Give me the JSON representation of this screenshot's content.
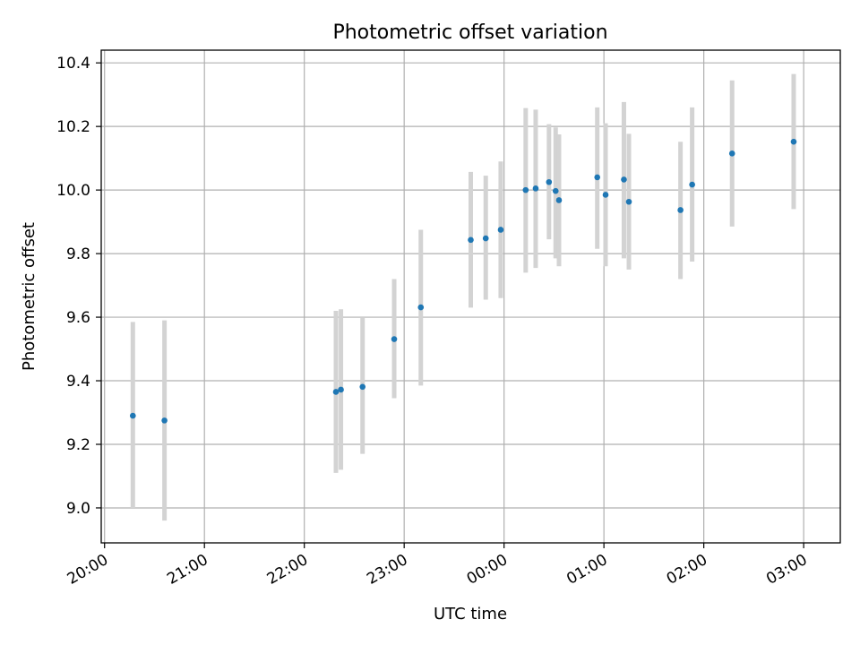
{
  "chart_data": {
    "type": "scatter",
    "title": "Photometric offset variation",
    "xlabel": "UTC time",
    "ylabel": "Photometric offset",
    "x_unit": "UTC time (HH:MM)",
    "x_range": [
      "19:58",
      "03:22"
    ],
    "ylim": [
      8.89,
      10.44
    ],
    "x_ticks": [
      "20:00",
      "21:00",
      "22:00",
      "23:00",
      "00:00",
      "01:00",
      "02:00",
      "03:00"
    ],
    "y_ticks": [
      "9.0",
      "9.2",
      "9.4",
      "9.6",
      "9.8",
      "10.0",
      "10.2",
      "10.4"
    ],
    "grid": true,
    "x_tick_rotation_deg": 30,
    "marker_color": "#1f77b4",
    "errorbar_color": "#d3d3d3",
    "series": [
      {
        "points": [
          {
            "x": "20:17",
            "y": 9.29,
            "err_low": 9.0,
            "err_high": 9.585
          },
          {
            "x": "20:36",
            "y": 9.275,
            "err_low": 8.96,
            "err_high": 9.59
          },
          {
            "x": "22:19",
            "y": 9.365,
            "err_low": 9.11,
            "err_high": 9.62
          },
          {
            "x": "22:22",
            "y": 9.372,
            "err_low": 9.12,
            "err_high": 9.625
          },
          {
            "x": "22:35",
            "y": 9.381,
            "err_low": 9.17,
            "err_high": 9.6
          },
          {
            "x": "22:54",
            "y": 9.531,
            "err_low": 9.345,
            "err_high": 9.72
          },
          {
            "x": "23:10",
            "y": 9.631,
            "err_low": 9.385,
            "err_high": 9.875
          },
          {
            "x": "23:40",
            "y": 9.843,
            "err_low": 9.63,
            "err_high": 10.057
          },
          {
            "x": "23:49",
            "y": 9.848,
            "err_low": 9.655,
            "err_high": 10.045
          },
          {
            "x": "23:58",
            "y": 9.875,
            "err_low": 9.66,
            "err_high": 10.09
          },
          {
            "x": "00:13",
            "y": 10.0,
            "err_low": 9.74,
            "err_high": 10.258
          },
          {
            "x": "00:19",
            "y": 10.005,
            "err_low": 9.755,
            "err_high": 10.253
          },
          {
            "x": "00:27",
            "y": 10.025,
            "err_low": 9.845,
            "err_high": 10.207
          },
          {
            "x": "00:31",
            "y": 9.997,
            "err_low": 9.785,
            "err_high": 10.197
          },
          {
            "x": "00:33",
            "y": 9.968,
            "err_low": 9.76,
            "err_high": 10.175
          },
          {
            "x": "00:56",
            "y": 10.04,
            "err_low": 9.815,
            "err_high": 10.26
          },
          {
            "x": "01:01",
            "y": 9.985,
            "err_low": 9.76,
            "err_high": 10.21
          },
          {
            "x": "01:12",
            "y": 10.033,
            "err_low": 9.785,
            "err_high": 10.277
          },
          {
            "x": "01:15",
            "y": 9.963,
            "err_low": 9.75,
            "err_high": 10.177
          },
          {
            "x": "01:46",
            "y": 9.937,
            "err_low": 9.72,
            "err_high": 10.152
          },
          {
            "x": "01:53",
            "y": 10.017,
            "err_low": 9.775,
            "err_high": 10.26
          },
          {
            "x": "02:17",
            "y": 10.115,
            "err_low": 9.885,
            "err_high": 10.345
          },
          {
            "x": "02:54",
            "y": 10.152,
            "err_low": 9.94,
            "err_high": 10.365
          }
        ]
      }
    ]
  }
}
